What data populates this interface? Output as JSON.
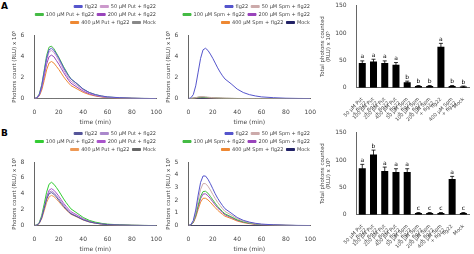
{
  "chart_data": [
    {
      "type": "line",
      "annotations": [
        "A"
      ],
      "x": [
        0,
        2,
        4,
        6,
        8,
        10,
        12,
        14,
        16,
        18,
        20,
        22,
        24,
        26,
        28,
        30,
        35,
        40,
        45,
        50,
        55,
        60,
        70,
        80,
        90,
        100
      ],
      "xlim": [
        0,
        100
      ],
      "xticks": [
        0,
        20,
        40,
        60,
        80,
        100
      ],
      "ylim": [
        0,
        6
      ],
      "yticks": [
        0,
        2,
        4,
        6
      ],
      "xlabel": "time (min)",
      "ylabel": "Photons count (RLU) x 10⁵",
      "legend": "upper right",
      "grid": false,
      "series": [
        {
          "name": "flg22",
          "color": "#5555cc",
          "values": [
            0,
            0.075,
            0.375,
            1.2,
            2.5,
            3.8,
            4.6,
            4.75,
            4.55,
            4.2,
            3.8,
            3.35,
            2.9,
            2.5,
            2.15,
            1.85,
            1.4,
            0.9,
            0.575,
            0.375,
            0.25,
            0.16,
            0.085,
            0.035,
            0.015,
            0.005
          ]
        },
        {
          "name": "50 μM Put + flg22",
          "color": "#cc99cc",
          "values": [
            0,
            0.075,
            0.375,
            1.15,
            2.35,
            3.6,
            4.4,
            4.55,
            4.35,
            4,
            3.6,
            3.15,
            2.7,
            2.3,
            1.95,
            1.65,
            1.25,
            0.825,
            0.525,
            0.335,
            0.22,
            0.135,
            0.07,
            0.03,
            0.015,
            0.005
          ]
        },
        {
          "name": "100 μM Put + flg22",
          "color": "#44bb44",
          "values": [
            0,
            0.09,
            0.44,
            1.3,
            2.65,
            4.05,
            4.85,
            4.95,
            4.7,
            4.3,
            3.9,
            3.45,
            3,
            2.6,
            2.2,
            1.85,
            1.4,
            0.9,
            0.575,
            0.375,
            0.24,
            0.145,
            0.08,
            0.035,
            0.015,
            0.005
          ]
        },
        {
          "name": "200 μM Put + flg22",
          "color": "#9944bb",
          "values": [
            0,
            0.06,
            0.31,
            1,
            2.1,
            3.25,
            3.95,
            4.1,
            3.95,
            3.6,
            3.25,
            2.85,
            2.45,
            2.1,
            1.75,
            1.45,
            1.075,
            0.7,
            0.45,
            0.285,
            0.18,
            0.115,
            0.065,
            0.025,
            0.005,
            0
          ]
        },
        {
          "name": "400 μM Put + flg22",
          "color": "#ee8833",
          "values": [
            0,
            0.05,
            0.25,
            0.8,
            1.7,
            2.7,
            3.35,
            3.5,
            3.35,
            3.05,
            2.75,
            2.4,
            2.05,
            1.75,
            1.475,
            1.225,
            0.91,
            0.59,
            0.38,
            0.245,
            0.155,
            0.095,
            0.05,
            0.02,
            0.005,
            0
          ]
        },
        {
          "name": "Mock",
          "color": "#888888",
          "values": [
            0,
            0,
            0,
            0,
            0,
            0,
            0,
            0,
            0,
            0,
            0,
            0,
            0,
            0,
            0,
            0,
            0,
            0,
            0,
            0,
            0,
            0,
            0,
            0,
            0,
            0
          ]
        }
      ]
    },
    {
      "type": "line",
      "x": [
        0,
        2,
        4,
        6,
        8,
        10,
        12,
        14,
        16,
        18,
        20,
        22,
        24,
        26,
        28,
        30,
        35,
        40,
        45,
        50,
        55,
        60,
        70,
        80,
        90,
        100
      ],
      "xlim": [
        0,
        100
      ],
      "xticks": [
        0,
        20,
        40,
        60,
        80,
        100
      ],
      "ylim": [
        0,
        6
      ],
      "yticks": [
        0,
        2,
        4,
        6
      ],
      "xlabel": "time (min)",
      "ylabel": "Photons count (RLU) x 10⁵",
      "legend": "upper right",
      "grid": false,
      "series": [
        {
          "name": "flg22",
          "color": "#5555cc",
          "values": [
            0,
            0.075,
            0.375,
            1.2,
            2.5,
            3.8,
            4.6,
            4.75,
            4.55,
            4.2,
            3.8,
            3.35,
            2.9,
            2.5,
            2.15,
            1.85,
            1.4,
            0.9,
            0.575,
            0.375,
            0.25,
            0.16,
            0.085,
            0.035,
            0.015,
            0.005
          ]
        },
        {
          "name": "50 μM Spm + flg22",
          "color": "#ccaaaa",
          "values": [
            0,
            0.01,
            0.04,
            0.09,
            0.15,
            0.19,
            0.19,
            0.165,
            0.135,
            0.11,
            0.09,
            0.07,
            0.055,
            0.045,
            0.035,
            0.0275,
            0.02,
            0.0125,
            0.0075,
            0.0025,
            0,
            0,
            0,
            0,
            0,
            0
          ]
        },
        {
          "name": "100 μM Spm + flg22",
          "color": "#44bb44",
          "values": [
            0,
            0.01,
            0.035,
            0.075,
            0.12,
            0.145,
            0.14,
            0.12,
            0.1,
            0.08,
            0.065,
            0.055,
            0.045,
            0.035,
            0.0275,
            0.0225,
            0.016,
            0.01,
            0.006,
            0.002,
            0,
            0,
            0,
            0,
            0,
            0
          ]
        },
        {
          "name": "200 μM Spm + flg22",
          "color": "#9944bb",
          "values": [
            0,
            0.01,
            0.035,
            0.07,
            0.11,
            0.13,
            0.12,
            0.1,
            0.085,
            0.07,
            0.055,
            0.045,
            0.0375,
            0.0315,
            0.025,
            0.02,
            0.014,
            0.0085,
            0.005,
            0.0015,
            0,
            0,
            0,
            0,
            0,
            0
          ]
        },
        {
          "name": "400 μM Spm + flg22",
          "color": "#ee8833",
          "values": [
            0,
            0.0075,
            0.0275,
            0.06,
            0.095,
            0.11,
            0.105,
            0.09,
            0.0725,
            0.06,
            0.05,
            0.04,
            0.0325,
            0.027,
            0.0215,
            0.017,
            0.012,
            0.0075,
            0.0045,
            0.0015,
            0,
            0,
            0,
            0,
            0,
            0
          ]
        },
        {
          "name": "Mock",
          "color": "#222266",
          "values": [
            0,
            0,
            0,
            0,
            0,
            0,
            0,
            0,
            0,
            0,
            0,
            0,
            0,
            0,
            0,
            0,
            0,
            0,
            0,
            0,
            0,
            0,
            0,
            0,
            0,
            0
          ]
        }
      ]
    },
    {
      "type": "bar",
      "categories": [
        "50 μM Put\n+ flg22",
        "100 μM Put\n+ flg22",
        "200 μM Put\n+ flg22",
        "400 μM Put\n+ flg22",
        "50 μM Spm\n+ flg22",
        "100 μM Spm\n+ flg22",
        "200 μM Spm\n+ flg22",
        "flg22",
        "400 μM Spm\n+ flg22",
        "Mock"
      ],
      "values": [
        45,
        48,
        45,
        42,
        10,
        3,
        3,
        75,
        3,
        2
      ],
      "errors": [
        4,
        4,
        4,
        4,
        2,
        1,
        1,
        6,
        1,
        1
      ],
      "letters": [
        "a",
        "a",
        "a",
        "a",
        "b",
        "b",
        "b",
        "a",
        "b",
        "b"
      ],
      "color": "#000000",
      "ylim": [
        0,
        150
      ],
      "yticks": [
        0,
        50,
        100,
        150
      ],
      "ylabel": "Total photons counted\n(RLU) x 10⁵",
      "grid": false
    },
    {
      "type": "line",
      "annotations": [
        "B"
      ],
      "x": [
        0,
        2,
        4,
        6,
        8,
        10,
        12,
        14,
        16,
        18,
        20,
        22,
        24,
        26,
        28,
        30,
        35,
        40,
        45,
        50,
        55,
        60,
        70,
        80,
        90,
        100
      ],
      "xlim": [
        0,
        100
      ],
      "xticks": [
        0,
        20,
        40,
        60,
        80,
        100
      ],
      "ylim": [
        0,
        8
      ],
      "yticks": [
        0,
        2,
        4,
        6,
        8
      ],
      "xlabel": "time (min)",
      "ylabel": "Photons count (RLU) x 10⁵",
      "legend": "upper right",
      "grid": false,
      "series": [
        {
          "name": "flg22",
          "color": "#555599",
          "values": [
            0,
            0.05,
            0.3,
            1,
            2.15,
            3.3,
            4,
            4.15,
            3.95,
            3.6,
            3.2,
            2.8,
            2.4,
            2.05,
            1.75,
            1.475,
            1.115,
            0.725,
            0.47,
            0.31,
            0.205,
            0.13,
            0.07,
            0.03,
            0.015,
            0.005
          ]
        },
        {
          "name": "50 μM Put + flg22",
          "color": "#aa88cc",
          "values": [
            0,
            0.06,
            0.335,
            1.075,
            2.25,
            3.45,
            4.2,
            4.35,
            4.15,
            3.8,
            3.4,
            3,
            2.6,
            2.2,
            1.85,
            1.56,
            1.17,
            0.76,
            0.49,
            0.32,
            0.21,
            0.13,
            0.07,
            0.03,
            0.015,
            0.005
          ]
        },
        {
          "name": "100 μM Put + flg22",
          "color": "#33cc33",
          "values": [
            0,
            0.075,
            0.4,
            1.275,
            2.7,
            4.2,
            5.2,
            5.45,
            5.2,
            4.8,
            4.35,
            3.85,
            3.35,
            2.9,
            2.5,
            2.1,
            1.575,
            1.025,
            0.66,
            0.435,
            0.285,
            0.18,
            0.1,
            0.045,
            0.02,
            0.005
          ]
        },
        {
          "name": "200 μM Put + flg22",
          "color": "#aa55cc",
          "values": [
            0,
            0.06,
            0.335,
            1.075,
            2.3,
            3.6,
            4.45,
            4.65,
            4.45,
            4.1,
            3.7,
            3.25,
            2.8,
            2.425,
            2.075,
            1.75,
            1.325,
            0.865,
            0.56,
            0.365,
            0.24,
            0.155,
            0.085,
            0.035,
            0.015,
            0.005
          ]
        },
        {
          "name": "400 μM Put + flg22",
          "color": "#ee9955",
          "values": [
            0,
            0.05,
            0.275,
            0.875,
            1.85,
            2.9,
            3.6,
            3.8,
            3.65,
            3.35,
            3,
            2.65,
            2.3,
            1.975,
            1.7,
            1.425,
            1.075,
            0.7,
            0.455,
            0.3,
            0.195,
            0.1225,
            0.0675,
            0.03,
            0.01,
            0
          ]
        },
        {
          "name": "Mock",
          "color": "#666666",
          "values": [
            0,
            0,
            0,
            0,
            0,
            0,
            0,
            0,
            0,
            0,
            0,
            0,
            0,
            0,
            0,
            0,
            0,
            0,
            0,
            0,
            0,
            0,
            0,
            0,
            0,
            0
          ]
        }
      ]
    },
    {
      "type": "line",
      "x": [
        0,
        2,
        4,
        6,
        8,
        10,
        12,
        14,
        16,
        18,
        20,
        22,
        24,
        26,
        28,
        30,
        35,
        40,
        45,
        50,
        55,
        60,
        70,
        80,
        90,
        100
      ],
      "xlim": [
        0,
        100
      ],
      "xticks": [
        0,
        20,
        40,
        60,
        80,
        100
      ],
      "ylim": [
        0,
        5
      ],
      "yticks": [
        0,
        1,
        2,
        3,
        4,
        5
      ],
      "xlabel": "time (min)",
      "ylabel": "Photons count (RLU) x 10⁵",
      "legend": "upper right",
      "grid": false,
      "series": [
        {
          "name": "flg22",
          "color": "#5555cc",
          "values": [
            0,
            0.075,
            0.4,
            1.225,
            2.4,
            3.4,
            3.9,
            3.9,
            3.65,
            3.3,
            2.9,
            2.5,
            2.15,
            1.85,
            1.575,
            1.325,
            0.99,
            0.64,
            0.415,
            0.275,
            0.18,
            0.115,
            0.065,
            0.03,
            0.015,
            0.005
          ]
        },
        {
          "name": "50 μM Spm + flg22",
          "color": "#ccaaaa",
          "values": [
            0,
            0.06,
            0.335,
            1.025,
            2,
            2.85,
            3.3,
            3.3,
            3.1,
            2.8,
            2.45,
            2.125,
            1.825,
            1.575,
            1.325,
            1.11,
            0.84,
            0.545,
            0.355,
            0.235,
            0.155,
            0.1,
            0.055,
            0.0225,
            0.0075,
            0
          ]
        },
        {
          "name": "100 μM Spm + flg22",
          "color": "#44bb44",
          "values": [
            0,
            0.05,
            0.275,
            0.825,
            1.6,
            2.3,
            2.675,
            2.7,
            2.55,
            2.3,
            2.025,
            1.76,
            1.51,
            1.3,
            1.1,
            0.925,
            0.7,
            0.455,
            0.295,
            0.195,
            0.13,
            0.0825,
            0.0475,
            0.021,
            0.006,
            0
          ]
        },
        {
          "name": "200 μM Spm + flg22",
          "color": "#9944bb",
          "values": [
            0,
            0.05,
            0.26,
            0.76,
            1.475,
            2.125,
            2.475,
            2.5,
            2.35,
            2.125,
            1.875,
            1.625,
            1.4,
            1.2,
            1.015,
            0.855,
            0.64,
            0.415,
            0.275,
            0.18,
            0.115,
            0.075,
            0.0425,
            0.0175,
            0.005,
            0
          ]
        },
        {
          "name": "400 μM Spm + flg22",
          "color": "#ee8833",
          "values": [
            0,
            0.04,
            0.215,
            0.65,
            1.275,
            1.85,
            2.15,
            2.15,
            2.025,
            1.835,
            1.62,
            1.41,
            1.21,
            1.04,
            0.88,
            0.74,
            0.56,
            0.36,
            0.235,
            0.155,
            0.1,
            0.065,
            0.035,
            0.0145,
            0.0045,
            0
          ]
        },
        {
          "name": "Mock",
          "color": "#222266",
          "values": [
            0,
            0,
            0,
            0,
            0,
            0,
            0,
            0,
            0,
            0,
            0,
            0,
            0,
            0,
            0,
            0,
            0,
            0,
            0,
            0,
            0,
            0,
            0,
            0,
            0,
            0
          ]
        }
      ]
    },
    {
      "type": "bar",
      "categories": [
        "50 μM Put\n+ flg22",
        "100 μM Put\n+ flg22",
        "200 μM Put\n+ flg22",
        "400 μM Put\n+ flg22",
        "50 μM Spm\n+ flg22",
        "100 μM Spm\n+ flg22",
        "200 μM Spm\n+ flg22",
        "400 μM Spm\n+ flg22",
        "flg22",
        "Mock"
      ],
      "values": [
        85,
        110,
        80,
        78,
        78,
        3,
        3,
        3,
        65,
        3
      ],
      "errors": [
        7,
        8,
        7,
        6,
        6,
        1,
        1,
        1,
        5,
        1
      ],
      "letters": [
        "a",
        "b",
        "a",
        "a",
        "a",
        "c",
        "c",
        "c",
        "a",
        "c"
      ],
      "color": "#000000",
      "ylim": [
        0,
        150
      ],
      "yticks": [
        0,
        50,
        100,
        150
      ],
      "ylabel": "Total photons counted\n(RLU) x 10⁵",
      "grid": false
    }
  ]
}
